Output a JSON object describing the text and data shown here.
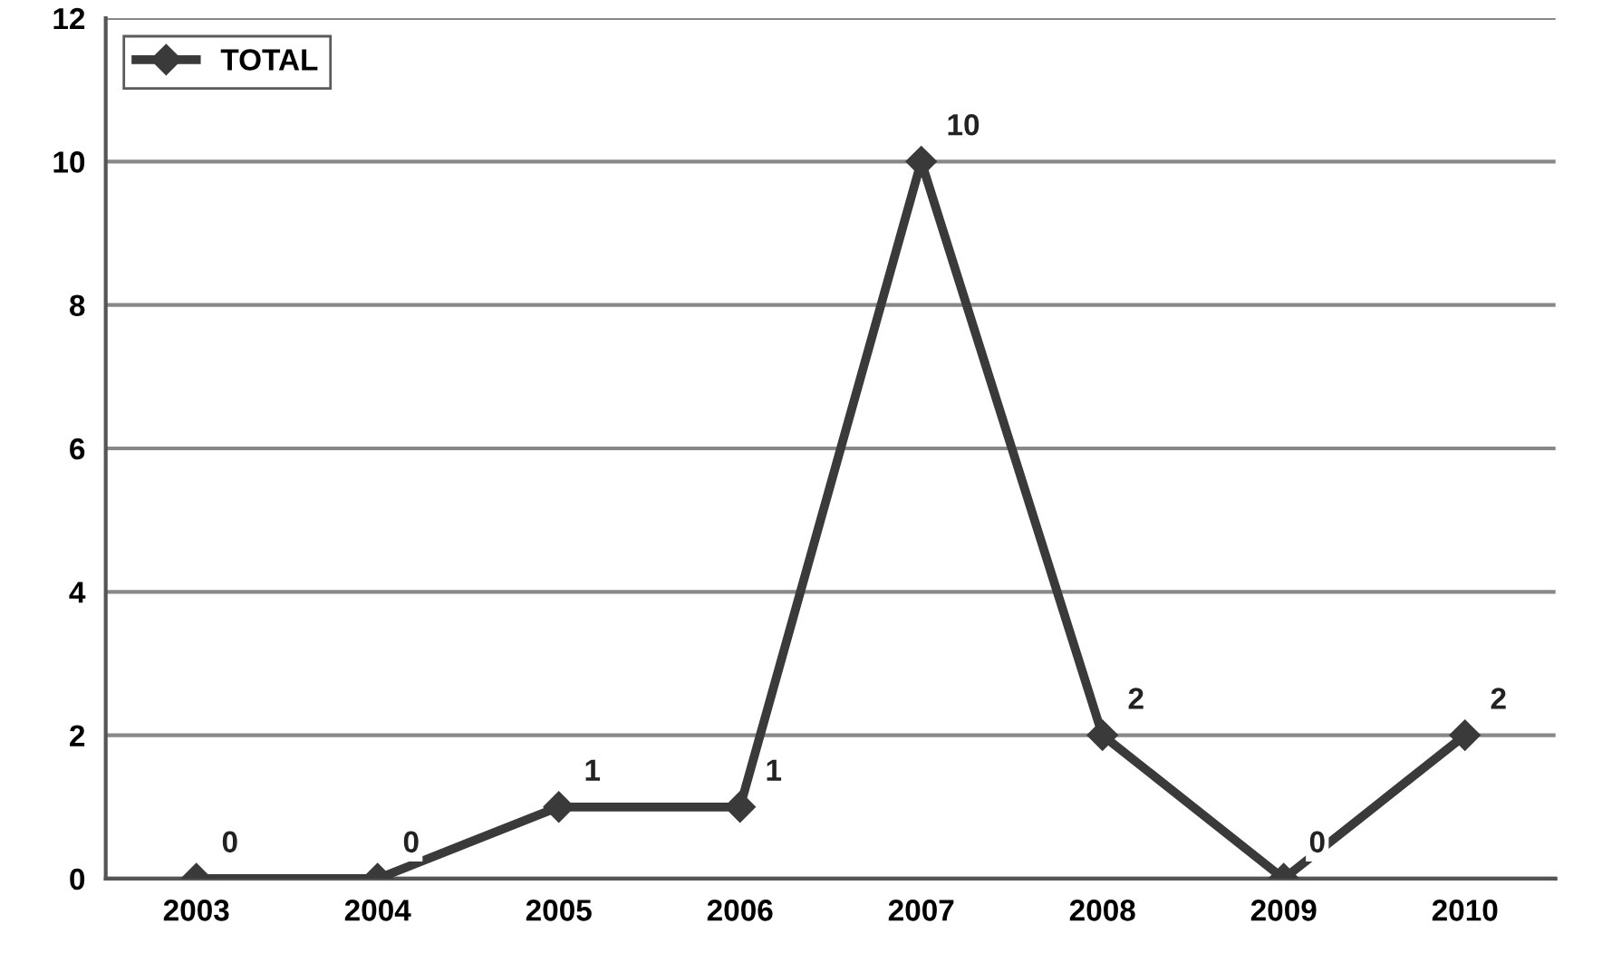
{
  "chart_data": {
    "type": "line",
    "categories": [
      "2003",
      "2004",
      "2005",
      "2006",
      "2007",
      "2008",
      "2009",
      "2010"
    ],
    "series": [
      {
        "name": "TOTAL",
        "color": "#3a3a3a",
        "values": [
          0,
          0,
          1,
          1,
          10,
          2,
          0,
          2
        ]
      }
    ],
    "ylim": [
      0,
      12
    ],
    "yticks": [
      0,
      2,
      4,
      6,
      8,
      10,
      12
    ],
    "grid": "y",
    "legend": "top left",
    "marker": "diamond",
    "line_style": "solid",
    "data_labels": true
  }
}
